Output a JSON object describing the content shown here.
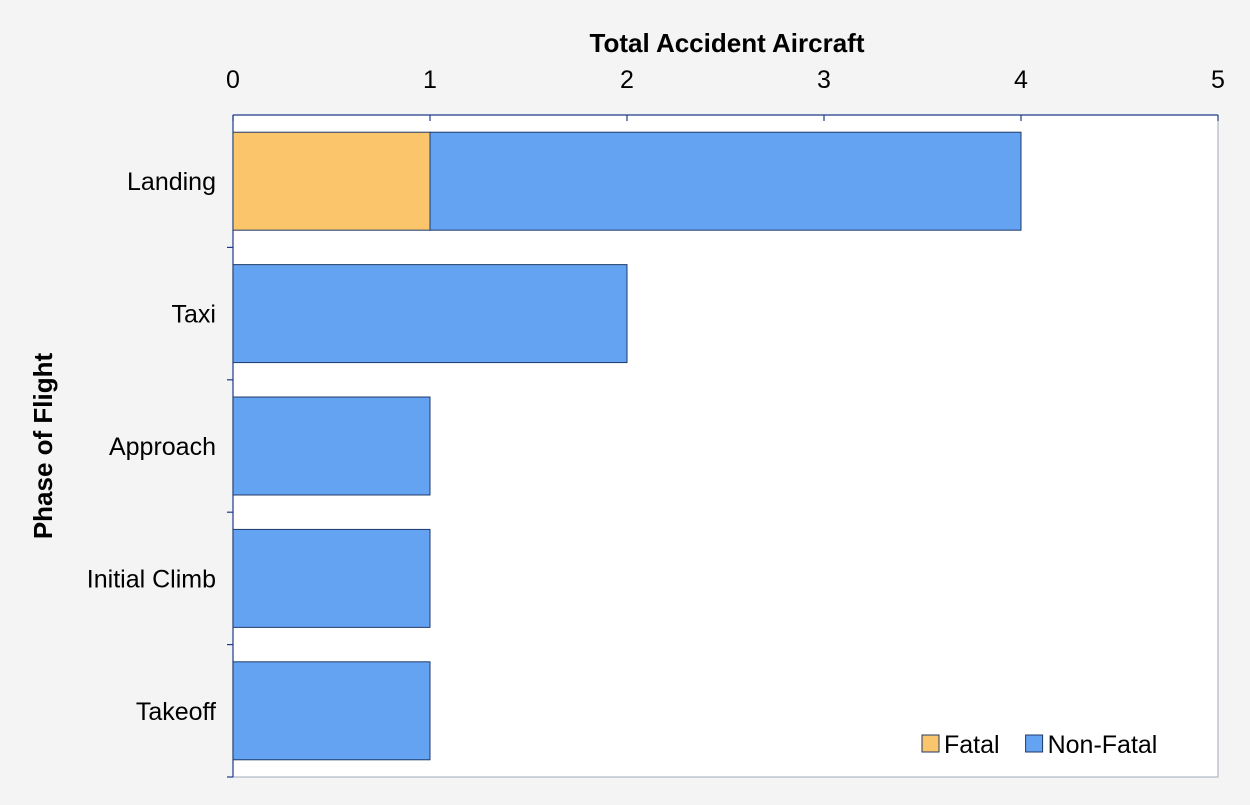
{
  "chart_data": {
    "type": "bar",
    "orientation": "horizontal",
    "stacked": true,
    "title": "",
    "xlabel": "Total Accident Aircraft",
    "ylabel": "Phase of Flight",
    "xlim": [
      0,
      5
    ],
    "x_ticks": [
      "0",
      "1",
      "2",
      "3",
      "4",
      "5"
    ],
    "categories": [
      "Landing",
      "Taxi",
      "Approach",
      "Initial Climb",
      "Takeoff"
    ],
    "series": [
      {
        "name": "Fatal",
        "values": [
          1,
          0,
          0,
          0,
          0
        ],
        "color": "#fbc56b"
      },
      {
        "name": "Non-Fatal",
        "values": [
          3,
          2,
          1,
          1,
          1
        ],
        "color": "#64a2f2"
      }
    ],
    "grid": false,
    "legend_position": "bottom-right"
  }
}
